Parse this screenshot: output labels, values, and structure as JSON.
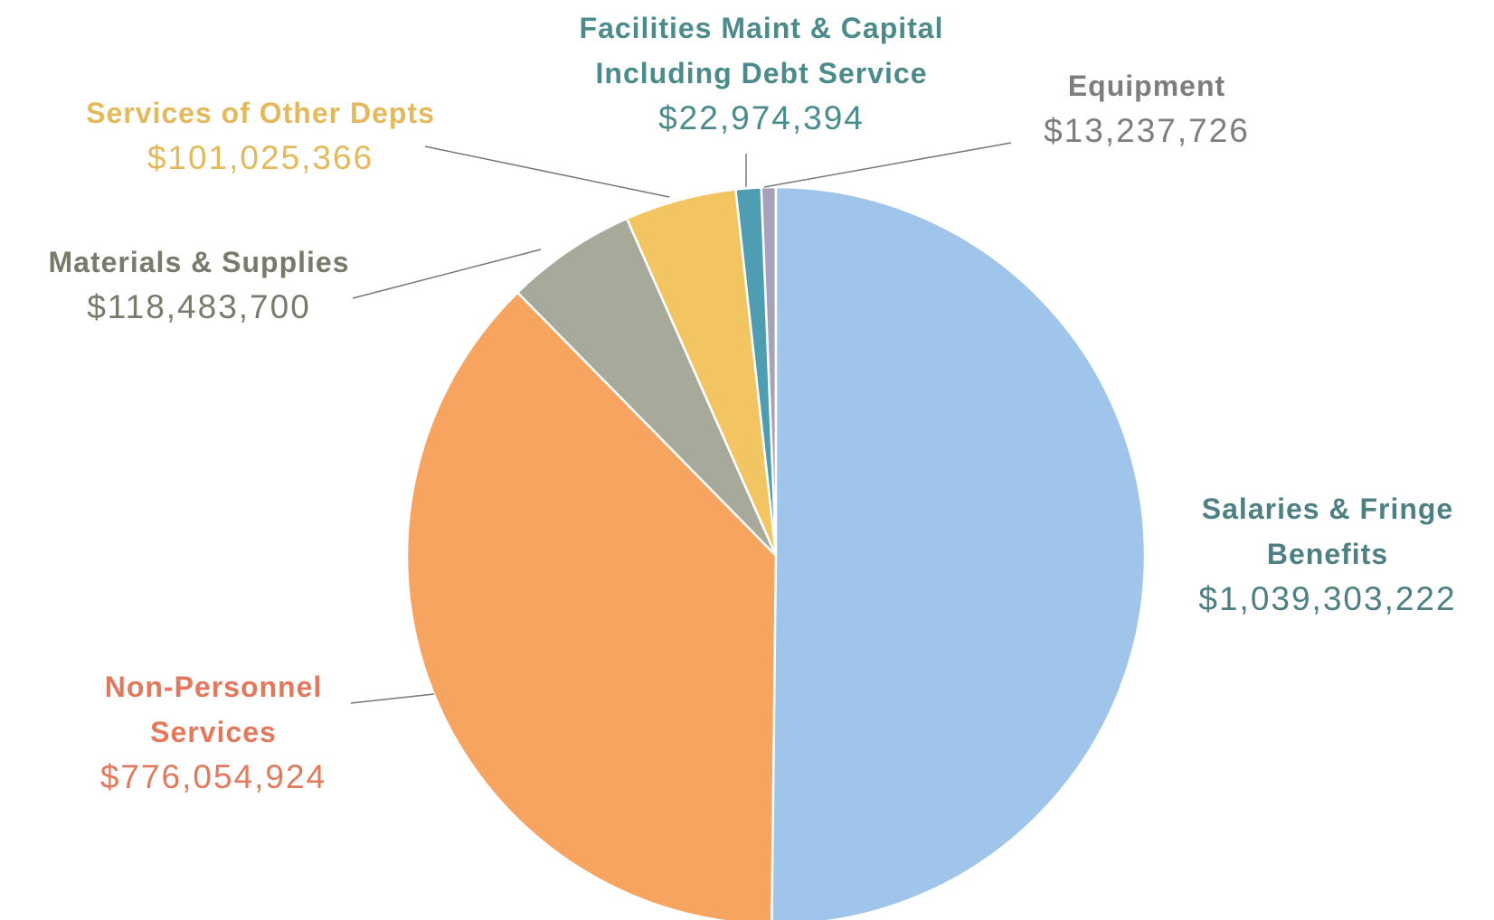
{
  "chart_data": {
    "type": "pie",
    "categories": [
      "Salaries & Fringe Benefits",
      "Non-Personnel Services",
      "Materials & Supplies",
      "Services of Other Depts",
      "Facilities Maint & Capital Including Debt Service",
      "Equipment"
    ],
    "values": [
      1039303222,
      776054924,
      118483700,
      101025366,
      22974394,
      13237726
    ],
    "value_labels": [
      "$1,039,303,222",
      "$776,054,924",
      "$118,483,700",
      "$101,025,366",
      "$22,974,394",
      "$13,237,726"
    ],
    "colors": [
      "#9fc5ea",
      "#f7a460",
      "#a7aa9b",
      "#f3c462",
      "#4f9db3",
      "#a8a2b8"
    ]
  }
}
